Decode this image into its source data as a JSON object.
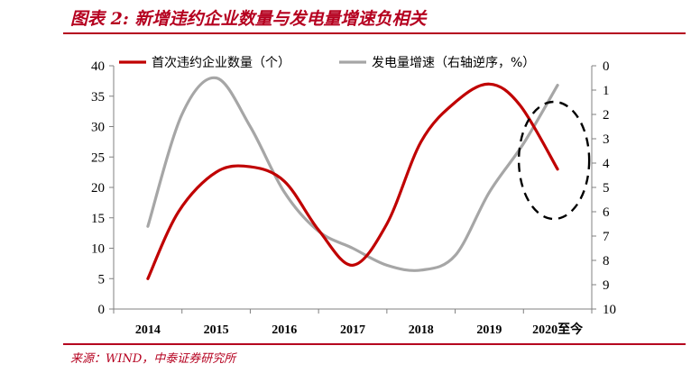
{
  "header": {
    "title": "图表 2:  新增违约企业数量与发电量增速负相关",
    "source": "来源：WIND，中泰证券研究所"
  },
  "colors": {
    "brand": "#b5001f",
    "series_default": "#c00000",
    "series_growth": "#a6a6a6"
  },
  "chart_data": {
    "type": "line",
    "categories": [
      "2014",
      "2015",
      "2016",
      "2017",
      "2018",
      "2019",
      "2020至今"
    ],
    "left_axis": {
      "ylim": [
        0,
        40
      ],
      "ticks": [
        "0",
        "5",
        "10",
        "15",
        "20",
        "25",
        "30",
        "35",
        "40"
      ]
    },
    "right_axis": {
      "ylim": [
        0,
        10
      ],
      "reversed": true,
      "ticks": [
        "0",
        "1",
        "2",
        "3",
        "4",
        "5",
        "6",
        "7",
        "8",
        "9",
        "10"
      ]
    },
    "series": [
      {
        "name": "首次违约企业数量（个）",
        "axis": "left",
        "color": "#c00000",
        "x": [
          0.0,
          0.45,
          1.0,
          1.5,
          2.0,
          2.5,
          3.0,
          3.5,
          4.0,
          4.5,
          5.0,
          5.45,
          6.0
        ],
        "y": [
          5,
          16,
          22.5,
          23.4,
          21,
          13,
          7.2,
          14,
          27.5,
          34,
          37,
          33.5,
          23
        ]
      },
      {
        "name": "发电量增速（右轴逆序，%）",
        "axis": "right",
        "color": "#a6a6a6",
        "x": [
          0.0,
          0.5,
          1.0,
          1.5,
          2.0,
          2.5,
          3.0,
          3.5,
          4.0,
          4.5,
          5.0,
          5.5,
          6.0
        ],
        "y": [
          6.6,
          2.0,
          0.5,
          2.5,
          5.2,
          6.8,
          7.5,
          8.2,
          8.4,
          7.8,
          5.2,
          3.2,
          0.8
        ]
      }
    ],
    "annotation": "dashed-ellipse-around-2020",
    "grid": false,
    "legend_position": "top"
  }
}
